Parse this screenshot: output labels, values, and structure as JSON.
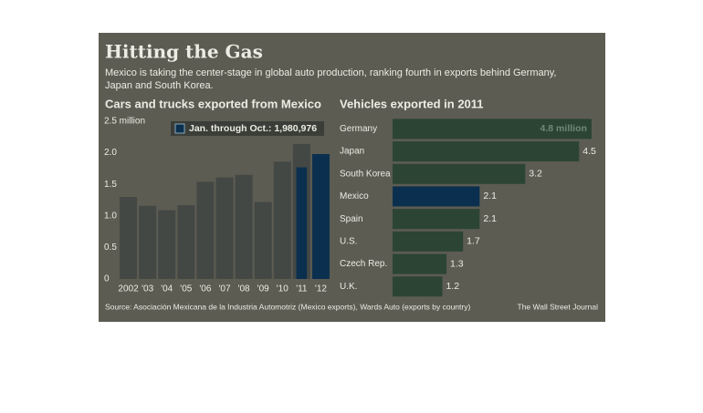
{
  "title": "Hitting the Gas",
  "subtitle": [
    "Mexico is taking the center-stage in global auto production, ranking fourth in exports behind Germany,",
    "Japan and South Korea."
  ],
  "source": "Source:  Asociación Mexicana de la Industria Automotriz (Mexico exports), Wards Auto (exports by country)",
  "credit": "The Wall Street Journal",
  "chart_data": [
    {
      "type": "bar",
      "title": "Cars and trucks exported from Mexico",
      "categories": [
        "2002",
        "'03",
        "'04",
        "'05",
        "'06",
        "'07",
        "'08",
        "'09",
        "'10",
        "'11",
        "'12"
      ],
      "series": [
        {
          "color": "#434844",
          "values": [
            1.3,
            1.16,
            1.09,
            1.17,
            1.54,
            1.61,
            1.65,
            1.22,
            1.86,
            2.14,
            null
          ]
        },
        {
          "name": "Jan. through Oct.: 1,980,976",
          "color": "#0b2f4e",
          "values": [
            null,
            null,
            null,
            null,
            null,
            null,
            null,
            null,
            null,
            1.77,
            1.98
          ]
        }
      ],
      "ylim": [
        0,
        2.5
      ],
      "yticks": [
        0,
        {
          "value": 0.5,
          "label": "0.5"
        },
        {
          "value": 1,
          "label": "1.0"
        },
        {
          "value": 1.5,
          "label": "1.5"
        },
        {
          "value": 2,
          "label": "2.0"
        },
        {
          "value": 2.5,
          "label": "2.5 million"
        }
      ],
      "grid": false
    },
    {
      "type": "hbar",
      "title": "Vehicles exported in 2011",
      "categories": [
        "Germany",
        "Japan",
        "South Korea",
        "Mexico",
        "Spain",
        "U.S.",
        "Czech Rep.",
        "U.K."
      ],
      "values": [
        4.8,
        4.5,
        3.2,
        2.1,
        2.1,
        1.7,
        1.3,
        1.2
      ],
      "value_labels": [
        "4.8 million",
        "4.5",
        "3.2",
        "2.1",
        "2.1",
        "1.7",
        "1.3",
        "1.2"
      ],
      "colors": [
        "#2c4433",
        "#2c4433",
        "#2c4433",
        "#0b2f4e",
        "#2c4433",
        "#2c4433",
        "#2c4433",
        "#2c4433"
      ]
    }
  ]
}
